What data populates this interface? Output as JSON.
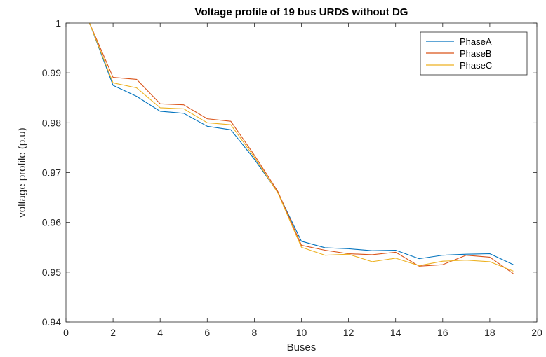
{
  "chart_data": {
    "type": "line",
    "title": "Voltage profile of 19 bus URDS without DG",
    "xlabel": "Buses",
    "ylabel": "voltage profile (p.u)",
    "xlim": [
      0,
      20
    ],
    "ylim": [
      0.94,
      1
    ],
    "xticks": [
      "0",
      "2",
      "4",
      "6",
      "8",
      "10",
      "12",
      "14",
      "16",
      "18",
      "20"
    ],
    "yticks": [
      "0.94",
      "0.95",
      "0.96",
      "0.97",
      "0.98",
      "0.99",
      "1"
    ],
    "grid": false,
    "legend_position": "top-right",
    "x": [
      1,
      2,
      3,
      4,
      5,
      6,
      7,
      8,
      9,
      10,
      11,
      12,
      13,
      14,
      15,
      16,
      17,
      18,
      19
    ],
    "series": [
      {
        "name": "PhaseA",
        "color": "#0072BD",
        "values": [
          1.0,
          0.9875,
          0.9853,
          0.9823,
          0.9819,
          0.9793,
          0.9786,
          0.9727,
          0.966,
          0.9562,
          0.9549,
          0.9547,
          0.9543,
          0.9544,
          0.9527,
          0.9534,
          0.9536,
          0.9537,
          0.9515
        ]
      },
      {
        "name": "PhaseB",
        "color": "#D95319",
        "values": [
          1.0,
          0.9891,
          0.9887,
          0.9838,
          0.9836,
          0.9808,
          0.9803,
          0.9735,
          0.9662,
          0.9554,
          0.9544,
          0.9537,
          0.9535,
          0.954,
          0.9512,
          0.9515,
          0.9534,
          0.953,
          0.9497
        ]
      },
      {
        "name": "PhaseC",
        "color": "#EDB120",
        "values": [
          1.0,
          0.988,
          0.987,
          0.983,
          0.9828,
          0.98,
          0.9796,
          0.9731,
          0.9659,
          0.955,
          0.9534,
          0.9536,
          0.9521,
          0.9528,
          0.9513,
          0.9522,
          0.9524,
          0.9521,
          0.9502
        ]
      }
    ]
  }
}
